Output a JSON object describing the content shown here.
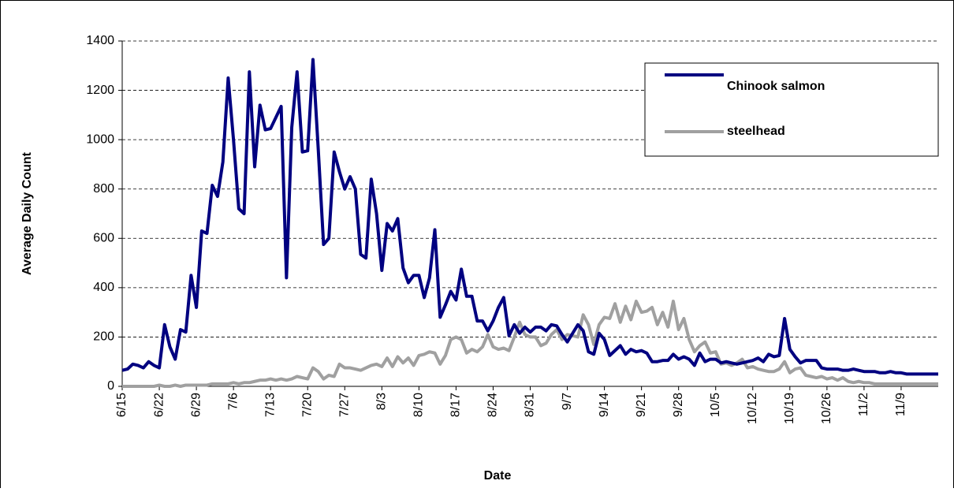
{
  "chart_data": {
    "type": "line",
    "x_label": "Date",
    "y_label": "Average Daily Count",
    "categories": [
      "6/15",
      null,
      null,
      null,
      null,
      null,
      null,
      "6/22",
      null,
      null,
      null,
      null,
      null,
      null,
      "6/29",
      null,
      null,
      null,
      null,
      null,
      null,
      "7/6",
      null,
      null,
      null,
      null,
      null,
      null,
      "7/13",
      null,
      null,
      null,
      null,
      null,
      null,
      "7/20",
      null,
      null,
      null,
      null,
      null,
      null,
      "7/27",
      null,
      null,
      null,
      null,
      null,
      null,
      "8/3",
      null,
      null,
      null,
      null,
      null,
      null,
      "8/10",
      null,
      null,
      null,
      null,
      null,
      null,
      "8/17",
      null,
      null,
      null,
      null,
      null,
      null,
      "8/24",
      null,
      null,
      null,
      null,
      null,
      null,
      "8/31",
      null,
      null,
      null,
      null,
      null,
      null,
      "9/7",
      null,
      null,
      null,
      null,
      null,
      null,
      "9/14",
      null,
      null,
      null,
      null,
      null,
      null,
      "9/21",
      null,
      null,
      null,
      null,
      null,
      null,
      "9/28",
      null,
      null,
      null,
      null,
      null,
      null,
      "10/5",
      null,
      null,
      null,
      null,
      null,
      null,
      "10/12",
      null,
      null,
      null,
      null,
      null,
      null,
      "10/19",
      null,
      null,
      null,
      null,
      null,
      null,
      "10/26",
      null,
      null,
      null,
      null,
      null,
      null,
      "11/2",
      null,
      null,
      null,
      null,
      null,
      null,
      "11/9",
      null,
      null,
      null,
      null,
      null,
      null,
      null
    ],
    "series": [
      {
        "name": "Chinook salmon",
        "color": "#000080",
        "values": [
          65,
          70,
          90,
          85,
          75,
          100,
          85,
          75,
          250,
          160,
          110,
          230,
          220,
          450,
          320,
          630,
          620,
          815,
          770,
          910,
          1250,
          1000,
          720,
          700,
          1275,
          890,
          1140,
          1040,
          1045,
          1090,
          1135,
          440,
          1050,
          1275,
          950,
          955,
          1325,
          960,
          575,
          600,
          950,
          870,
          800,
          850,
          800,
          535,
          520,
          840,
          700,
          470,
          660,
          630,
          680,
          480,
          420,
          450,
          450,
          360,
          440,
          635,
          280,
          330,
          385,
          350,
          475,
          365,
          365,
          265,
          265,
          225,
          265,
          320,
          360,
          205,
          250,
          215,
          240,
          220,
          240,
          240,
          225,
          250,
          245,
          210,
          180,
          215,
          250,
          225,
          140,
          130,
          215,
          190,
          125,
          145,
          165,
          130,
          150,
          140,
          145,
          135,
          100,
          100,
          105,
          105,
          130,
          110,
          120,
          110,
          85,
          135,
          100,
          110,
          110,
          95,
          100,
          95,
          90,
          95,
          100,
          105,
          115,
          100,
          130,
          120,
          125,
          275,
          150,
          120,
          95,
          105,
          105,
          105,
          75,
          70,
          70,
          70,
          65,
          65,
          70,
          65,
          60,
          60,
          60,
          55,
          55,
          60,
          55,
          55,
          50,
          50,
          50,
          50,
          50,
          50,
          50
        ]
      },
      {
        "name": "steelhead",
        "color": "#a0a0a0",
        "values": [
          0,
          0,
          0,
          0,
          0,
          0,
          0,
          5,
          0,
          0,
          5,
          0,
          5,
          5,
          5,
          5,
          5,
          10,
          10,
          10,
          10,
          15,
          10,
          15,
          15,
          20,
          25,
          25,
          30,
          25,
          30,
          25,
          30,
          40,
          35,
          30,
          75,
          60,
          30,
          45,
          40,
          90,
          75,
          75,
          70,
          65,
          75,
          85,
          90,
          80,
          115,
          80,
          120,
          95,
          115,
          85,
          125,
          130,
          140,
          135,
          90,
          125,
          190,
          200,
          190,
          135,
          150,
          140,
          160,
          210,
          160,
          150,
          155,
          145,
          200,
          260,
          210,
          200,
          200,
          165,
          175,
          210,
          230,
          190,
          210,
          205,
          200,
          290,
          250,
          170,
          250,
          280,
          275,
          335,
          260,
          325,
          270,
          345,
          300,
          305,
          320,
          250,
          300,
          240,
          345,
          230,
          275,
          190,
          140,
          165,
          180,
          135,
          140,
          90,
          95,
          85,
          95,
          110,
          75,
          80,
          70,
          65,
          60,
          60,
          70,
          100,
          55,
          70,
          75,
          45,
          40,
          35,
          40,
          30,
          35,
          25,
          35,
          20,
          15,
          20,
          15,
          15,
          10,
          10,
          10,
          10,
          10,
          10,
          10,
          10,
          10,
          10,
          10,
          10,
          10
        ]
      }
    ],
    "ylim": [
      0,
      1400
    ],
    "yticks": [
      0,
      200,
      400,
      600,
      800,
      1000,
      1200,
      1400
    ],
    "grid": true,
    "legend": "upper right"
  }
}
